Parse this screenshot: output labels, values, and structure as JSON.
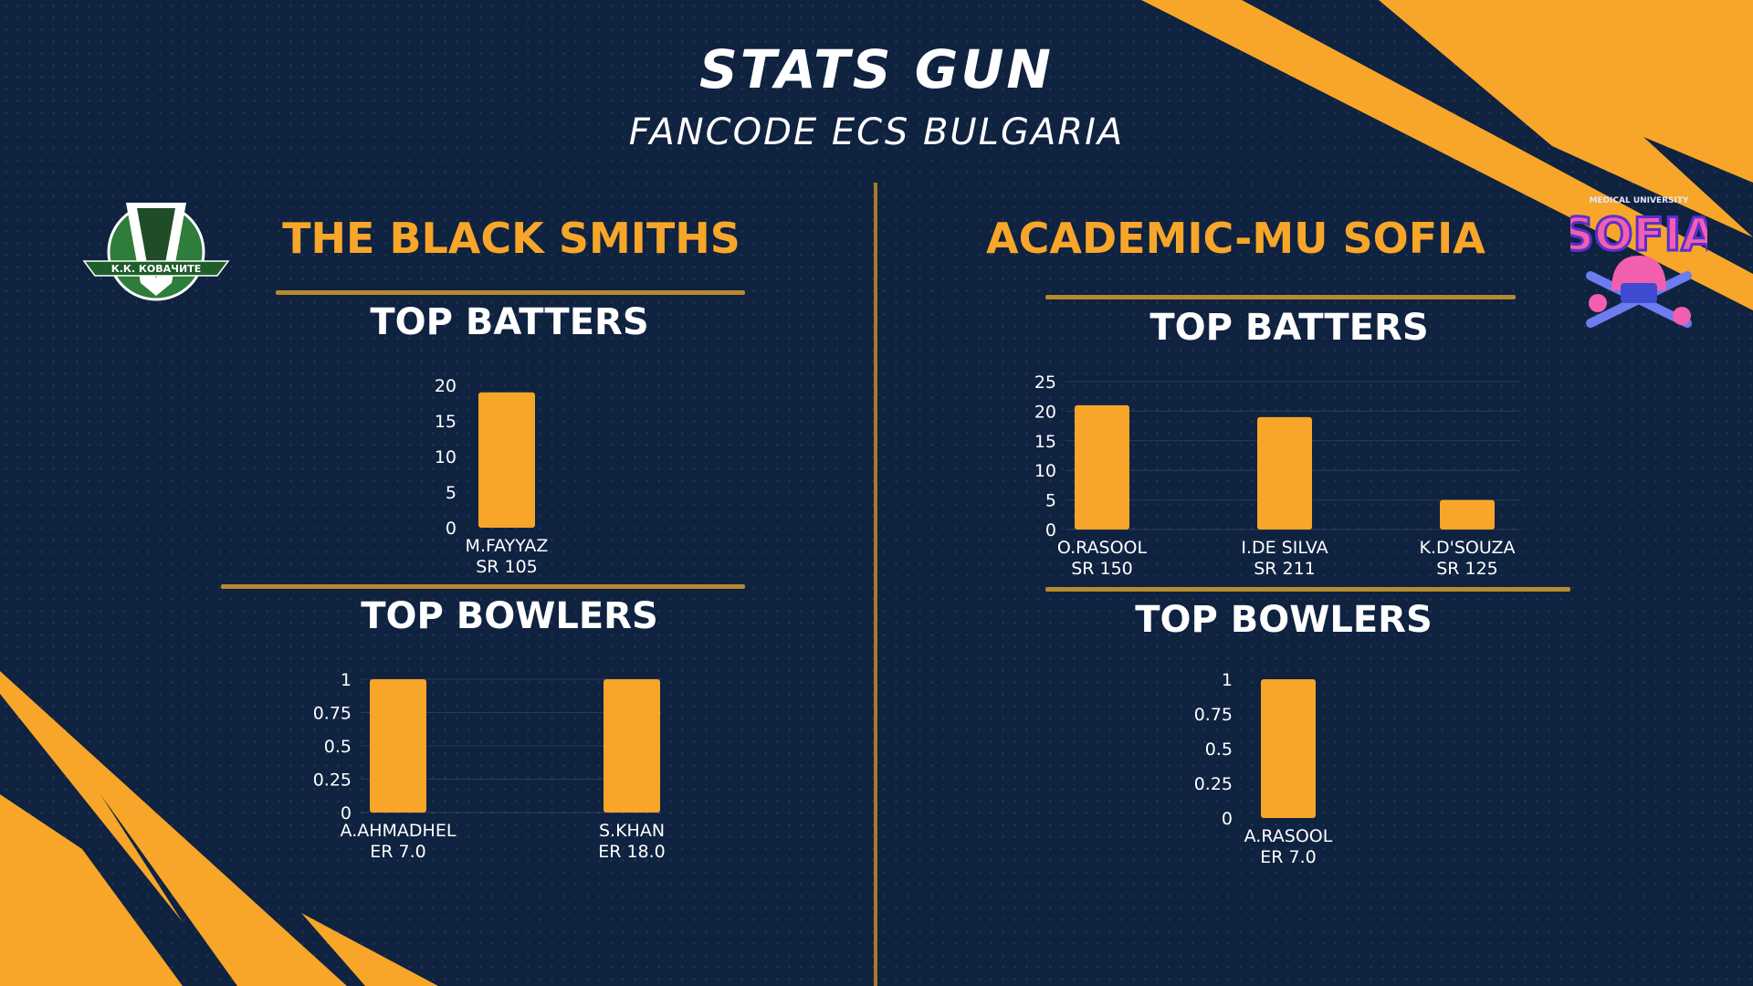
{
  "header": {
    "title": "STATS GUN",
    "subtitle": "FANCODE ECS BULGARIA"
  },
  "teams": [
    {
      "name": "THE BLACK SMITHS",
      "logo_text": "К.К. КОВАЧИТЕ",
      "batters_title": "TOP BATTERS",
      "bowlers_title": "TOP BOWLERS"
    },
    {
      "name": "ACADEMIC-MU SOFIA",
      "logo_text": "SOFIA",
      "logo_subtext": "MEDICAL UNIVERSITY",
      "batters_title": "TOP BATTERS",
      "bowlers_title": "TOP BOWLERS"
    }
  ],
  "colors": {
    "accent": "#f7a629",
    "background": "#0f2240",
    "bar": "#f7a629",
    "text": "#ffffff"
  },
  "chart_data": [
    {
      "type": "bar",
      "title": "TOP BATTERS",
      "team": "THE BLACK SMITHS",
      "categories": [
        [
          "M.FAYYAZ",
          "SR 105"
        ]
      ],
      "values": [
        19
      ],
      "ylim": [
        0,
        20
      ],
      "yticks": [
        "0",
        "5",
        "10",
        "15",
        "20"
      ],
      "grid": false
    },
    {
      "type": "bar",
      "title": "TOP BOWLERS",
      "team": "THE BLACK SMITHS",
      "categories": [
        [
          "A.AHMADHEL",
          "ER 7.0"
        ],
        [
          "S.KHAN",
          "ER 18.0"
        ]
      ],
      "values": [
        1,
        1
      ],
      "ylim": [
        0,
        1
      ],
      "yticks": [
        "0",
        "0.25",
        "0.5",
        "0.75",
        "1"
      ],
      "grid": true
    },
    {
      "type": "bar",
      "title": "TOP BATTERS",
      "team": "ACADEMIC-MU SOFIA",
      "categories": [
        [
          "O.RASOOL",
          "SR 150"
        ],
        [
          "I.DE SILVA",
          "SR 211"
        ],
        [
          "K.D'SOUZA",
          "SR 125"
        ]
      ],
      "values": [
        21,
        19,
        5
      ],
      "ylim": [
        0,
        25
      ],
      "yticks": [
        "0",
        "5",
        "10",
        "15",
        "20",
        "25"
      ],
      "grid": true
    },
    {
      "type": "bar",
      "title": "TOP BOWLERS",
      "team": "ACADEMIC-MU SOFIA",
      "categories": [
        [
          "A.RASOOL",
          "ER 7.0"
        ]
      ],
      "values": [
        1
      ],
      "ylim": [
        0,
        1
      ],
      "yticks": [
        "0",
        "0.25",
        "0.5",
        "0.75",
        "1"
      ],
      "grid": false
    }
  ]
}
